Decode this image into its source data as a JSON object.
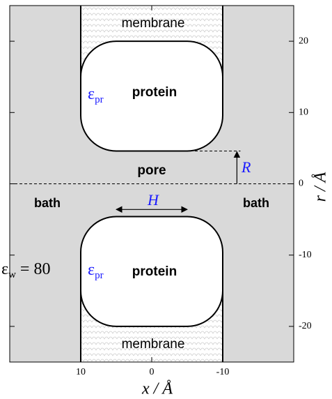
{
  "axes": {
    "xlim": [
      20,
      -20
    ],
    "xticks": [
      10,
      0,
      -10
    ],
    "ylim": [
      -25,
      25
    ],
    "yticks": [
      -20,
      -10,
      0,
      10,
      20
    ],
    "xlabel": "x / Å",
    "ylabel": "r / Å"
  },
  "labels": {
    "membrane_top": "membrane",
    "membrane_bottom": "membrane",
    "protein_top": "protein",
    "protein_bottom": "protein",
    "eps_pr_top": {
      "symbol": "ε",
      "subscript": "pr"
    },
    "eps_pr_bottom": {
      "symbol": "ε",
      "subscript": "pr"
    },
    "pore": "pore",
    "bath_left": "bath",
    "bath_right": "bath",
    "eps_w": {
      "symbol": "ε",
      "subscript": "w",
      "rest": "= 80"
    },
    "H": "H",
    "R": "R"
  }
}
